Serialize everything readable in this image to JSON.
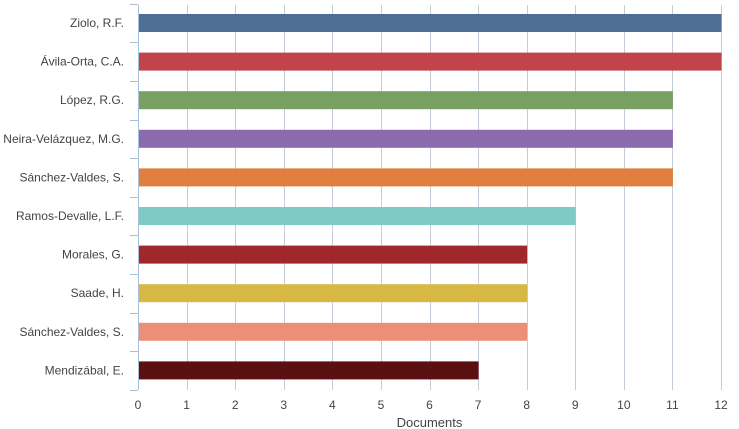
{
  "chart_data": {
    "type": "bar",
    "orientation": "horizontal",
    "categories": [
      "Ziolo, R.F.",
      "Ávila-Orta, C.A.",
      "López, R.G.",
      "Neira-Velázquez, M.G.",
      "Sánchez-Valdes, S.",
      "Ramos-Devalle, L.F.",
      "Morales, G.",
      "Saade, H.",
      "Sánchez-Valdes, S.",
      "Mendizábal, E."
    ],
    "values": [
      12,
      12,
      11,
      11,
      11,
      9,
      8,
      8,
      8,
      7
    ],
    "colors": [
      "#4e6e96",
      "#c1444a",
      "#77a062",
      "#8b6aae",
      "#e07f3e",
      "#7ecbc3",
      "#a0282c",
      "#d7b843",
      "#eb8f79",
      "#5a1010"
    ],
    "xlabel": "Documents",
    "ylabel": "",
    "xlim": [
      0,
      12
    ],
    "x_ticks": [
      0,
      1,
      2,
      3,
      4,
      5,
      6,
      7,
      8,
      9,
      10,
      11,
      12
    ],
    "grid": true,
    "grid_axis": "x",
    "grid_color": "#c5ced8",
    "axis_color": "#a9c0d6",
    "legend": "none"
  }
}
